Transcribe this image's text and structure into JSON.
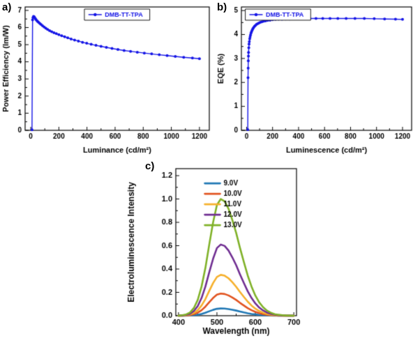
{
  "panels": {
    "a": "a)",
    "b": "b)",
    "c": "c)"
  },
  "chart_data": [
    {
      "id": "a",
      "type": "line",
      "title": "",
      "xlabel": "Luminance (cd/m²)",
      "ylabel": "Power Efficiency (lm/W)",
      "xlim": [
        -40,
        1270
      ],
      "ylim": [
        0,
        7.2
      ],
      "xticks": [
        0,
        200,
        400,
        600,
        800,
        1000,
        1200
      ],
      "yticks": [
        0,
        1,
        2,
        3,
        4,
        5,
        6,
        7
      ],
      "xminor": 100,
      "yminor": 0.5,
      "legend": {
        "position": "top-center",
        "border": true,
        "entries": [
          {
            "label": "DMB-TT-TPA",
            "color": "#1414e6",
            "text_color": "#1414e6",
            "marker": true
          }
        ]
      },
      "series": [
        {
          "name": "DMB-TT-TPA",
          "color": "#1414e6",
          "marker": true,
          "line_width": 1.4,
          "x": [
            9,
            13,
            16,
            20,
            24,
            28,
            33,
            38,
            44,
            50,
            57,
            65,
            74,
            84,
            95,
            107,
            120,
            134,
            149,
            165,
            182,
            200,
            220,
            241,
            263,
            287,
            312,
            339,
            368,
            398,
            430,
            464,
            500,
            538,
            578,
            620,
            664,
            710,
            758,
            808,
            860,
            914,
            970,
            1028,
            1088,
            1150,
            1200
          ],
          "y": [
            0.03,
            6.45,
            6.58,
            6.65,
            6.63,
            6.58,
            6.52,
            6.46,
            6.4,
            6.35,
            6.29,
            6.23,
            6.17,
            6.1,
            6.03,
            5.96,
            5.89,
            5.82,
            5.76,
            5.7,
            5.64,
            5.58,
            5.52,
            5.46,
            5.4,
            5.33,
            5.27,
            5.21,
            5.14,
            5.08,
            5.02,
            4.96,
            4.9,
            4.84,
            4.78,
            4.72,
            4.66,
            4.61,
            4.56,
            4.51,
            4.46,
            4.41,
            4.36,
            4.31,
            4.26,
            4.22,
            4.18
          ]
        }
      ]
    },
    {
      "id": "b",
      "type": "line",
      "title": "",
      "xlabel": "Luminescence (cd/m²)",
      "ylabel": "EQE (%)",
      "xlim": [
        -40,
        1270
      ],
      "ylim": [
        0,
        5.15
      ],
      "xticks": [
        0,
        200,
        400,
        600,
        800,
        1000,
        1200
      ],
      "yticks": [
        0,
        1,
        2,
        3,
        4,
        5
      ],
      "xminor": 100,
      "yminor": 0.5,
      "legend": {
        "position": "top-left",
        "border": true,
        "entries": [
          {
            "label": "DMB-TT-TPA",
            "color": "#1414e6",
            "text_color": "#1414e6",
            "marker": true
          }
        ]
      },
      "series": [
        {
          "name": "DMB-TT-TPA",
          "color": "#1414e6",
          "marker": true,
          "line_width": 1.4,
          "x": [
            9,
            11,
            12,
            13,
            14,
            15,
            17,
            19,
            21,
            24,
            27,
            30,
            34,
            38,
            43,
            48,
            54,
            61,
            68,
            76,
            85,
            95,
            106,
            118,
            131,
            146,
            162,
            180,
            200,
            222,
            246,
            272,
            300,
            331,
            365,
            402,
            442,
            486,
            534,
            586,
            642,
            702,
            766,
            834,
            906,
            982,
            1062,
            1146,
            1200
          ],
          "y": [
            0.03,
            2.2,
            2.6,
            2.9,
            3.1,
            3.25,
            3.45,
            3.6,
            3.7,
            3.82,
            3.9,
            3.98,
            4.06,
            4.12,
            4.18,
            4.24,
            4.29,
            4.34,
            4.38,
            4.42,
            4.45,
            4.48,
            4.51,
            4.53,
            4.55,
            4.57,
            4.59,
            4.6,
            4.62,
            4.63,
            4.64,
            4.64,
            4.65,
            4.65,
            4.66,
            4.66,
            4.66,
            4.67,
            4.67,
            4.67,
            4.67,
            4.67,
            4.67,
            4.67,
            4.67,
            4.66,
            4.65,
            4.64,
            4.63
          ]
        }
      ]
    },
    {
      "id": "c",
      "type": "line",
      "title": "",
      "xlabel": "Wavelength (nm)",
      "ylabel": "Electroluminescence Intensity",
      "xlim": [
        393,
        707
      ],
      "ylim": [
        0,
        1.26
      ],
      "xticks": [
        400,
        500,
        600,
        700
      ],
      "yticks": [
        0,
        0.2,
        0.4,
        0.6,
        0.8,
        1.0,
        1.2
      ],
      "ytick_labels": [
        "0.0",
        "0.2",
        "0.4",
        "0.6",
        "0.8",
        "1.0",
        "1.2"
      ],
      "xminor": 50,
      "yminor": 0.1,
      "legend": {
        "position": "inside-upper-left",
        "border": false,
        "entries": [
          {
            "label": "9.0V",
            "color": "#1f77b4",
            "text_color": "#000000"
          },
          {
            "label": "10.0V",
            "color": "#e1531f",
            "text_color": "#000000"
          },
          {
            "label": "11.0V",
            "color": "#f6b02c",
            "text_color": "#000000"
          },
          {
            "label": "12.0V",
            "color": "#6f2d91",
            "text_color": "#000000"
          },
          {
            "label": "13.0V",
            "color": "#7fb127",
            "text_color": "#000000"
          }
        ]
      },
      "series": [
        {
          "name": "9.0V",
          "color": "#1f77b4",
          "marker": false,
          "line_width": 2.6,
          "x": [
            400,
            410,
            420,
            430,
            440,
            450,
            460,
            470,
            480,
            490,
            500,
            510,
            520,
            530,
            540,
            550,
            560,
            570,
            580,
            590,
            600,
            610,
            620,
            630,
            640,
            650,
            660,
            670,
            680,
            690,
            700
          ],
          "y": [
            0,
            0,
            0.001,
            0.002,
            0.004,
            0.008,
            0.015,
            0.025,
            0.038,
            0.05,
            0.059,
            0.062,
            0.061,
            0.057,
            0.051,
            0.044,
            0.036,
            0.028,
            0.021,
            0.015,
            0.011,
            0.007,
            0.004,
            0.003,
            0.002,
            0.001,
            0,
            0,
            0,
            0,
            0
          ]
        },
        {
          "name": "10.0V",
          "color": "#e1531f",
          "marker": false,
          "line_width": 2.6,
          "x": [
            400,
            410,
            420,
            430,
            440,
            450,
            460,
            470,
            480,
            490,
            500,
            510,
            520,
            530,
            540,
            550,
            560,
            570,
            580,
            590,
            600,
            610,
            620,
            630,
            640,
            650,
            660,
            670,
            680,
            690,
            700
          ],
          "y": [
            0,
            0.001,
            0.002,
            0.005,
            0.013,
            0.026,
            0.047,
            0.078,
            0.116,
            0.152,
            0.18,
            0.19,
            0.186,
            0.174,
            0.156,
            0.135,
            0.11,
            0.087,
            0.065,
            0.047,
            0.033,
            0.022,
            0.014,
            0.008,
            0.005,
            0.003,
            0.001,
            0.001,
            0,
            0,
            0
          ]
        },
        {
          "name": "11.0V",
          "color": "#f6b02c",
          "marker": false,
          "line_width": 2.6,
          "x": [
            400,
            410,
            420,
            430,
            440,
            450,
            460,
            470,
            480,
            490,
            500,
            510,
            520,
            530,
            540,
            550,
            560,
            570,
            580,
            590,
            600,
            610,
            620,
            630,
            640,
            650,
            660,
            670,
            680,
            690,
            700
          ],
          "y": [
            0,
            0.001,
            0.004,
            0.01,
            0.023,
            0.047,
            0.087,
            0.143,
            0.213,
            0.28,
            0.332,
            0.35,
            0.343,
            0.321,
            0.287,
            0.248,
            0.203,
            0.161,
            0.121,
            0.087,
            0.06,
            0.04,
            0.026,
            0.015,
            0.009,
            0.005,
            0.003,
            0.001,
            0.001,
            0,
            0
          ]
        },
        {
          "name": "12.0V",
          "color": "#6f2d91",
          "marker": false,
          "line_width": 2.6,
          "x": [
            400,
            410,
            420,
            430,
            440,
            450,
            460,
            470,
            480,
            490,
            500,
            510,
            520,
            530,
            540,
            550,
            560,
            570,
            580,
            590,
            600,
            610,
            620,
            630,
            640,
            650,
            660,
            670,
            680,
            690,
            700
          ],
          "y": [
            0.001,
            0.002,
            0.007,
            0.017,
            0.04,
            0.082,
            0.152,
            0.25,
            0.372,
            0.488,
            0.58,
            0.61,
            0.598,
            0.559,
            0.5,
            0.433,
            0.354,
            0.281,
            0.21,
            0.152,
            0.105,
            0.07,
            0.045,
            0.027,
            0.016,
            0.009,
            0.005,
            0.002,
            0.001,
            0.001,
            0
          ]
        },
        {
          "name": "13.0V",
          "color": "#7fb127",
          "marker": false,
          "line_width": 2.6,
          "x": [
            400,
            410,
            420,
            430,
            440,
            450,
            460,
            470,
            480,
            490,
            500,
            510,
            520,
            530,
            540,
            550,
            560,
            570,
            580,
            590,
            600,
            610,
            620,
            630,
            640,
            650,
            660,
            670,
            680,
            690,
            700
          ],
          "y": [
            0.001,
            0.004,
            0.011,
            0.028,
            0.066,
            0.135,
            0.25,
            0.41,
            0.61,
            0.8,
            0.95,
            1.0,
            0.98,
            0.917,
            0.82,
            0.71,
            0.58,
            0.46,
            0.345,
            0.25,
            0.172,
            0.114,
            0.073,
            0.044,
            0.026,
            0.014,
            0.008,
            0.004,
            0.002,
            0.001,
            0
          ]
        }
      ]
    }
  ]
}
